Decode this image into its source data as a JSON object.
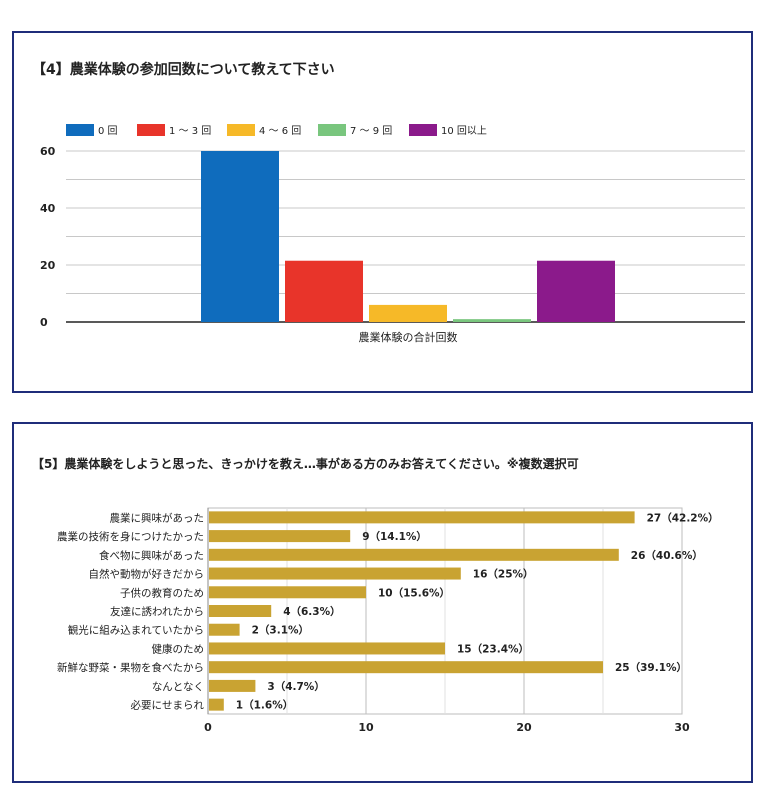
{
  "charts": [
    {
      "title": "【4】農業体験の参加回数について教えて下さい",
      "chart_data": {
        "type": "bar",
        "categories": [
          "農業体験の合計回数"
        ],
        "series": [
          {
            "name": "0 回",
            "values": [
              60
            ],
            "color": "#0f6cbd"
          },
          {
            "name": "1 ～ 3 回",
            "values": [
              21.5
            ],
            "color": "#e8342a"
          },
          {
            "name": "4 ～ 6 回",
            "values": [
              6
            ],
            "color": "#f6b928"
          },
          {
            "name": "7 ～ 9 回",
            "values": [
              1
            ],
            "color": "#79c67e"
          },
          {
            "name": "10 回以上",
            "values": [
              21.5
            ],
            "color": "#8b1a8b"
          }
        ],
        "ylim": [
          0,
          60
        ],
        "yticks": [
          "0",
          "20",
          "40",
          "60"
        ],
        "grid": true,
        "legend": "top"
      }
    },
    {
      "title": "【5】農業体験をしようと思った、きっかけを教え…事がある方のみお答えてください。※複数選択可",
      "chart_data": {
        "type": "bar",
        "orientation": "horizontal",
        "categories": [
          "農業に興味があった",
          "農業の技術を身につけたかった",
          "食べ物に興味があった",
          "自然や動物が好きだから",
          "子供の教育のため",
          "友達に誘われたから",
          "観光に組み込まれていたから",
          "健康のため",
          "新鮮な野菜・果物を食べたから",
          "なんとなく",
          "必要にせまられ"
        ],
        "values": [
          27,
          9,
          26,
          16,
          10,
          4,
          2,
          15,
          25,
          3,
          1
        ],
        "data_labels": [
          "27（42.2%）",
          "9（14.1%）",
          "26（40.6%）",
          "16（25%）",
          "10（15.6%）",
          "4（6.3%）",
          "2（3.1%）",
          "15（23.4%）",
          "25（39.1%）",
          "3（4.7%）",
          "1（1.6%）"
        ],
        "color": "#c9a332",
        "xlim": [
          0,
          30
        ],
        "xticks": [
          "0",
          "10",
          "20",
          "30"
        ],
        "grid": true
      }
    }
  ]
}
